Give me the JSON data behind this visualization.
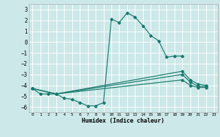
{
  "title": "",
  "xlabel": "Humidex (Indice chaleur)",
  "bg_color": "#cce8e8",
  "grid_color": "#ffffff",
  "line_color": "#1a7a6e",
  "xlim": [
    -0.5,
    23.5
  ],
  "ylim": [
    -6.5,
    3.5
  ],
  "yticks": [
    -6,
    -5,
    -4,
    -3,
    -2,
    -1,
    0,
    1,
    2,
    3
  ],
  "xticks": [
    0,
    1,
    2,
    3,
    4,
    5,
    6,
    7,
    8,
    9,
    10,
    11,
    12,
    13,
    14,
    15,
    16,
    17,
    18,
    19,
    20,
    21,
    22,
    23
  ],
  "lines_full": [
    {
      "x": [
        0,
        1,
        2,
        3,
        4,
        5,
        6,
        7,
        8,
        9,
        10,
        11,
        12,
        13,
        14,
        15,
        16,
        17,
        18,
        19
      ],
      "y": [
        -4.3,
        -4.8,
        -4.8,
        -4.8,
        -5.2,
        -5.3,
        -5.6,
        -5.9,
        -5.9,
        -5.6,
        2.1,
        1.8,
        2.7,
        2.3,
        1.5,
        0.6,
        0.1,
        -1.4,
        -1.3,
        -1.3
      ]
    },
    {
      "x": [
        0,
        3,
        19,
        20,
        21,
        22
      ],
      "y": [
        -4.3,
        -4.8,
        -2.7,
        -3.5,
        -3.9,
        -4.0
      ]
    },
    {
      "x": [
        0,
        3,
        19,
        20,
        21,
        22
      ],
      "y": [
        -4.3,
        -4.8,
        -3.0,
        -3.7,
        -4.1,
        -4.1
      ]
    },
    {
      "x": [
        0,
        3,
        19,
        20,
        21,
        22
      ],
      "y": [
        -4.3,
        -4.8,
        -3.5,
        -4.0,
        -4.2,
        -4.2
      ]
    }
  ]
}
